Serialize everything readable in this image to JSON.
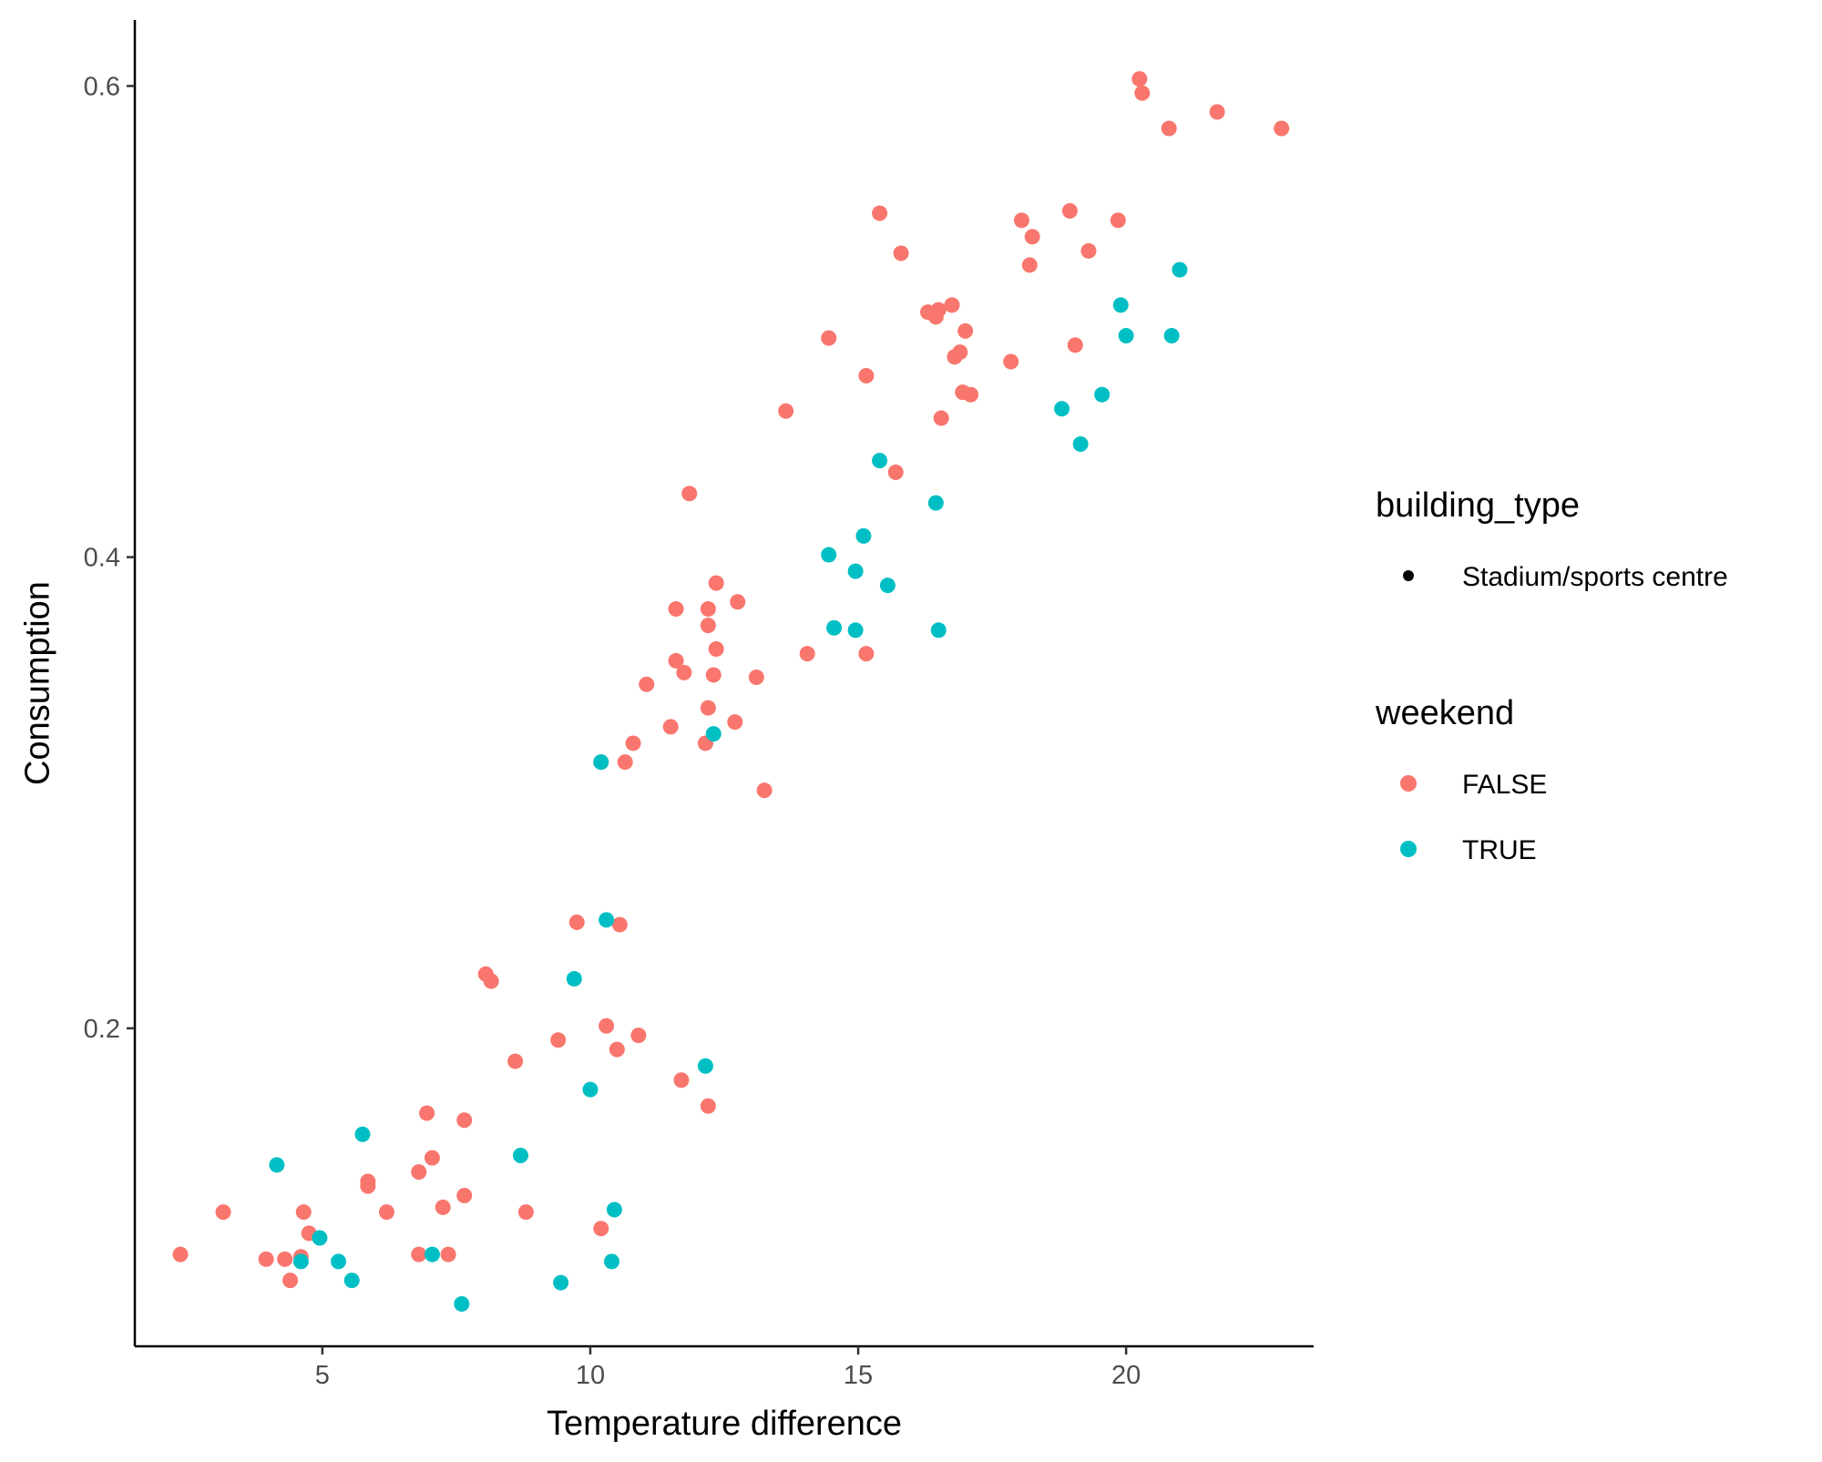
{
  "chart_data": {
    "type": "scatter",
    "xlabel": "Temperature difference",
    "ylabel": "Consumption",
    "xlim": [
      1.5,
      23.5
    ],
    "ylim": [
      0.065,
      0.628
    ],
    "x_ticks": [
      5,
      10,
      15,
      20
    ],
    "y_ticks": [
      0.2,
      0.4,
      0.6
    ],
    "x_tick_labels": [
      "5",
      "10",
      "15",
      "20"
    ],
    "y_tick_labels": [
      "0.2",
      "0.4",
      "0.6"
    ],
    "grid": false,
    "legend_placement": "right",
    "legend": {
      "shape_title": "building_type",
      "shape_items": [
        {
          "label": "Stadium/sports centre",
          "color": "#000000"
        }
      ],
      "color_title": "weekend",
      "color_items": [
        {
          "label": "FALSE",
          "color": "#F8766D"
        },
        {
          "label": "TRUE",
          "color": "#00BFC4"
        }
      ]
    },
    "series": [
      {
        "name": "FALSE",
        "color": "#F8766D",
        "points": [
          [
            20.25,
            0.603
          ],
          [
            20.3,
            0.597
          ],
          [
            21.7,
            0.589
          ],
          [
            20.8,
            0.582
          ],
          [
            22.9,
            0.582
          ],
          [
            15.4,
            0.546
          ],
          [
            18.95,
            0.547
          ],
          [
            18.05,
            0.543
          ],
          [
            19.85,
            0.543
          ],
          [
            18.25,
            0.536
          ],
          [
            15.8,
            0.529
          ],
          [
            19.3,
            0.53
          ],
          [
            18.2,
            0.524
          ],
          [
            16.75,
            0.507
          ],
          [
            16.3,
            0.504
          ],
          [
            16.5,
            0.505
          ],
          [
            16.45,
            0.502
          ],
          [
            17.0,
            0.496
          ],
          [
            14.45,
            0.493
          ],
          [
            19.05,
            0.49
          ],
          [
            16.9,
            0.487
          ],
          [
            16.8,
            0.485
          ],
          [
            17.85,
            0.483
          ],
          [
            15.15,
            0.477
          ],
          [
            16.95,
            0.47
          ],
          [
            17.1,
            0.469
          ],
          [
            13.65,
            0.462
          ],
          [
            16.55,
            0.459
          ],
          [
            15.7,
            0.436
          ],
          [
            11.85,
            0.427
          ],
          [
            12.35,
            0.389
          ],
          [
            12.75,
            0.381
          ],
          [
            11.6,
            0.378
          ],
          [
            12.2,
            0.378
          ],
          [
            12.2,
            0.371
          ],
          [
            12.35,
            0.361
          ],
          [
            14.05,
            0.359
          ],
          [
            15.15,
            0.359
          ],
          [
            11.6,
            0.356
          ],
          [
            11.75,
            0.351
          ],
          [
            12.3,
            0.35
          ],
          [
            13.1,
            0.349
          ],
          [
            11.05,
            0.346
          ],
          [
            12.2,
            0.336
          ],
          [
            12.7,
            0.33
          ],
          [
            11.5,
            0.328
          ],
          [
            10.8,
            0.321
          ],
          [
            12.15,
            0.321
          ],
          [
            10.65,
            0.313
          ],
          [
            10.2,
            0.313
          ],
          [
            13.25,
            0.301
          ],
          [
            9.75,
            0.245
          ],
          [
            10.55,
            0.244
          ],
          [
            8.05,
            0.223
          ],
          [
            8.15,
            0.22
          ],
          [
            10.3,
            0.201
          ],
          [
            9.4,
            0.195
          ],
          [
            10.9,
            0.197
          ],
          [
            10.5,
            0.191
          ],
          [
            8.6,
            0.186
          ],
          [
            11.7,
            0.178
          ],
          [
            12.2,
            0.167
          ],
          [
            6.95,
            0.164
          ],
          [
            7.65,
            0.161
          ],
          [
            7.05,
            0.145
          ],
          [
            6.8,
            0.139
          ],
          [
            5.85,
            0.135
          ],
          [
            5.85,
            0.133
          ],
          [
            7.65,
            0.129
          ],
          [
            7.25,
            0.124
          ],
          [
            4.65,
            0.122
          ],
          [
            6.2,
            0.122
          ],
          [
            8.8,
            0.122
          ],
          [
            3.15,
            0.122
          ],
          [
            10.2,
            0.115
          ],
          [
            4.75,
            0.113
          ],
          [
            2.35,
            0.104
          ],
          [
            3.95,
            0.102
          ],
          [
            4.3,
            0.102
          ],
          [
            4.6,
            0.103
          ],
          [
            6.8,
            0.104
          ],
          [
            7.35,
            0.104
          ],
          [
            4.4,
            0.093
          ]
        ]
      },
      {
        "name": "TRUE",
        "color": "#00BFC4",
        "points": [
          [
            21.0,
            0.522
          ],
          [
            19.9,
            0.507
          ],
          [
            20.0,
            0.494
          ],
          [
            20.85,
            0.494
          ],
          [
            19.55,
            0.469
          ],
          [
            18.8,
            0.463
          ],
          [
            19.15,
            0.448
          ],
          [
            15.4,
            0.441
          ],
          [
            16.45,
            0.423
          ],
          [
            15.1,
            0.409
          ],
          [
            14.45,
            0.401
          ],
          [
            14.95,
            0.394
          ],
          [
            15.55,
            0.388
          ],
          [
            14.55,
            0.37
          ],
          [
            14.95,
            0.369
          ],
          [
            16.5,
            0.369
          ],
          [
            12.3,
            0.325
          ],
          [
            10.2,
            0.313
          ],
          [
            10.3,
            0.246
          ],
          [
            9.7,
            0.221
          ],
          [
            12.15,
            0.184
          ],
          [
            10.0,
            0.174
          ],
          [
            5.75,
            0.155
          ],
          [
            8.7,
            0.146
          ],
          [
            4.15,
            0.142
          ],
          [
            10.45,
            0.123
          ],
          [
            4.95,
            0.111
          ],
          [
            7.05,
            0.104
          ],
          [
            4.6,
            0.101
          ],
          [
            5.3,
            0.101
          ],
          [
            10.4,
            0.101
          ],
          [
            5.55,
            0.093
          ],
          [
            9.45,
            0.092
          ],
          [
            7.6,
            0.083
          ]
        ]
      }
    ]
  }
}
